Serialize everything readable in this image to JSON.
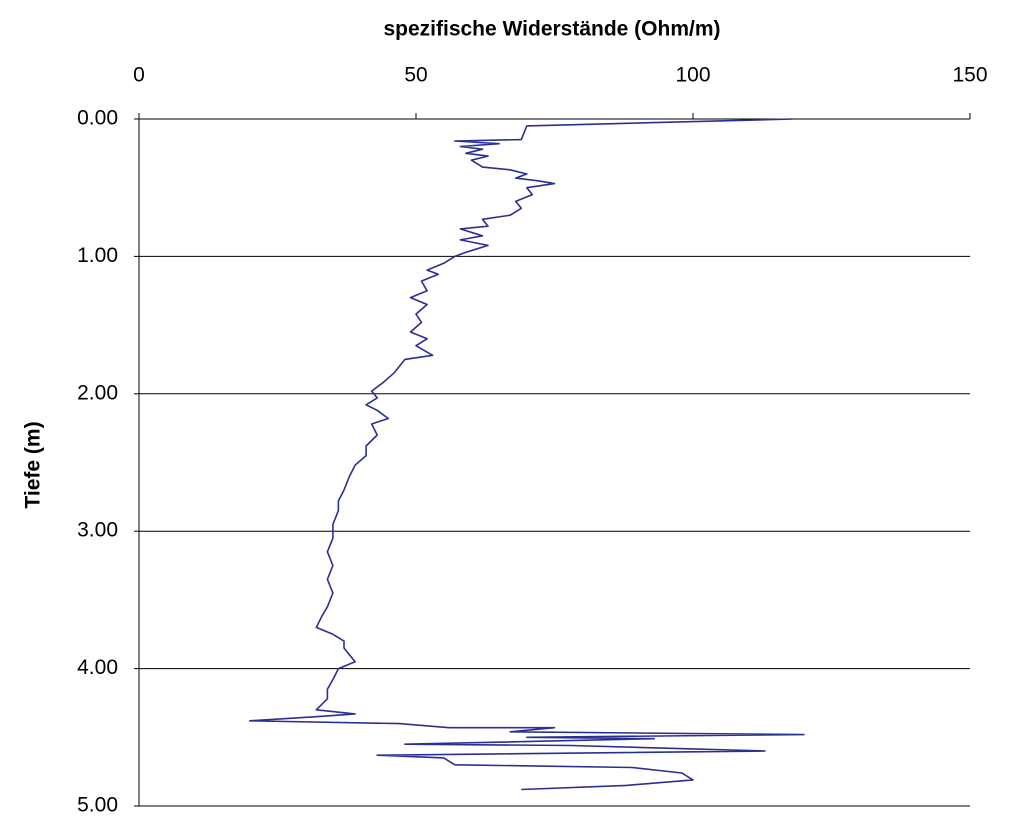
{
  "chart_data": {
    "type": "line",
    "title": "spezifische Widerstände (Ohm/m)",
    "y_label": "Tiefe (m)",
    "color": "#2b3090",
    "x_axis_position": "top",
    "y_inverted": true,
    "grid": true,
    "xlim": [
      0,
      150
    ],
    "xticks": [
      0,
      50,
      100,
      150
    ],
    "ylim": [
      0,
      5
    ],
    "yticks": [
      {
        "value": 0,
        "label": "0.00"
      },
      {
        "value": 1,
        "label": "1.00"
      },
      {
        "value": 2,
        "label": "2.00"
      },
      {
        "value": 3,
        "label": "3.00"
      },
      {
        "value": 4,
        "label": "4.00"
      },
      {
        "value": 5,
        "label": "5.00"
      }
    ],
    "x": [
      118,
      70,
      69,
      57,
      65,
      58,
      62,
      59,
      63,
      60,
      62,
      67,
      70,
      68,
      72,
      75,
      70,
      71,
      68,
      69,
      67,
      62,
      63,
      58,
      62,
      58,
      63,
      59,
      57,
      55,
      52,
      54,
      51,
      52,
      49,
      52,
      50,
      51,
      49,
      52,
      50,
      53,
      48,
      47,
      46,
      44,
      42,
      43,
      41,
      43,
      45,
      42,
      43,
      41,
      41,
      39,
      38,
      37,
      36,
      36,
      35,
      35,
      34,
      35,
      34,
      35,
      34,
      33,
      32,
      35,
      37,
      37,
      38,
      39,
      36,
      35,
      34,
      34,
      32,
      39,
      32,
      20,
      47,
      56,
      75,
      67,
      120,
      70,
      93,
      48,
      78,
      113,
      43,
      55,
      57,
      89,
      98,
      100,
      88,
      69
    ],
    "values": [
      0.0,
      0.05,
      0.15,
      0.16,
      0.18,
      0.2,
      0.22,
      0.25,
      0.27,
      0.3,
      0.35,
      0.37,
      0.4,
      0.43,
      0.45,
      0.47,
      0.5,
      0.55,
      0.6,
      0.65,
      0.7,
      0.73,
      0.78,
      0.8,
      0.85,
      0.88,
      0.92,
      0.97,
      1.0,
      1.05,
      1.1,
      1.13,
      1.18,
      1.25,
      1.3,
      1.35,
      1.42,
      1.48,
      1.55,
      1.6,
      1.65,
      1.72,
      1.75,
      1.8,
      1.85,
      1.92,
      1.98,
      2.03,
      2.08,
      2.12,
      2.18,
      2.22,
      2.3,
      2.38,
      2.45,
      2.52,
      2.6,
      2.7,
      2.78,
      2.85,
      2.95,
      3.05,
      3.15,
      3.25,
      3.35,
      3.45,
      3.55,
      3.62,
      3.7,
      3.75,
      3.8,
      3.85,
      3.9,
      3.95,
      4.0,
      4.08,
      4.15,
      4.22,
      4.3,
      4.33,
      4.35,
      4.38,
      4.4,
      4.43,
      4.43,
      4.46,
      4.48,
      4.5,
      4.51,
      4.55,
      4.56,
      4.6,
      4.63,
      4.65,
      4.7,
      4.72,
      4.76,
      4.81,
      4.85,
      4.88
    ]
  }
}
